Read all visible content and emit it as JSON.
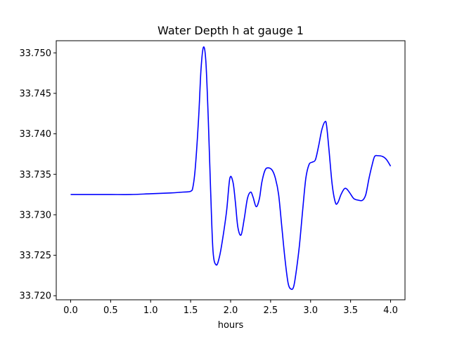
{
  "chart_data": {
    "type": "line",
    "title": "Water Depth h at gauge 1",
    "xlabel": "hours",
    "ylabel": "",
    "xlim": [
      -0.18,
      4.18
    ],
    "ylim": [
      33.7195,
      33.7515
    ],
    "xticks": [
      0.0,
      0.5,
      1.0,
      1.5,
      2.0,
      2.5,
      3.0,
      3.5,
      4.0
    ],
    "xtick_labels": [
      "0.0",
      "0.5",
      "1.0",
      "1.5",
      "2.0",
      "2.5",
      "3.0",
      "3.5",
      "4.0"
    ],
    "yticks": [
      33.72,
      33.725,
      33.73,
      33.735,
      33.74,
      33.745,
      33.75
    ],
    "ytick_labels": [
      "33.720",
      "33.725",
      "33.730",
      "33.735",
      "33.740",
      "33.745",
      "33.750"
    ],
    "grid": false,
    "legend": "none",
    "colors": {
      "line": "#0000ff",
      "axes": "#000000",
      "background": "#ffffff"
    },
    "series": [
      {
        "x": [
          0.0,
          0.25,
          0.5,
          0.75,
          1.0,
          1.25,
          1.4,
          1.5,
          1.53,
          1.56,
          1.6,
          1.63,
          1.66,
          1.69,
          1.72,
          1.75,
          1.78,
          1.82,
          1.86,
          1.9,
          1.95,
          1.99,
          2.03,
          2.06,
          2.09,
          2.13,
          2.17,
          2.21,
          2.25,
          2.28,
          2.32,
          2.36,
          2.39,
          2.43,
          2.47,
          2.52,
          2.56,
          2.6,
          2.64,
          2.68,
          2.72,
          2.76,
          2.79,
          2.82,
          2.86,
          2.9,
          2.94,
          2.98,
          3.02,
          3.06,
          3.1,
          3.14,
          3.18,
          3.2,
          3.23,
          3.27,
          3.31,
          3.34,
          3.38,
          3.42,
          3.45,
          3.49,
          3.54,
          3.6,
          3.65,
          3.69,
          3.73,
          3.77,
          3.8,
          3.84,
          3.9,
          3.95,
          4.0
        ],
        "y": [
          33.7325,
          33.7325,
          33.7325,
          33.7325,
          33.7326,
          33.7327,
          33.7328,
          33.7329,
          33.7335,
          33.736,
          33.742,
          33.748,
          33.7507,
          33.749,
          33.742,
          33.733,
          33.7255,
          33.7238,
          33.7248,
          33.727,
          33.7305,
          33.7345,
          33.734,
          33.7315,
          33.7285,
          33.7275,
          33.7295,
          33.732,
          33.7328,
          33.7322,
          33.731,
          33.732,
          33.734,
          33.7355,
          33.7358,
          33.7355,
          33.7345,
          33.7325,
          33.7285,
          33.7245,
          33.7215,
          33.7208,
          33.7212,
          33.723,
          33.7262,
          33.7305,
          33.7345,
          33.7362,
          33.7365,
          33.7368,
          33.7385,
          33.7405,
          33.7415,
          33.741,
          33.738,
          33.7337,
          33.7315,
          33.7315,
          33.7325,
          33.7332,
          33.7332,
          33.7327,
          33.732,
          33.7318,
          33.7318,
          33.7325,
          33.7345,
          33.7362,
          33.7372,
          33.7373,
          33.7372,
          33.7368,
          33.736
        ]
      }
    ]
  }
}
